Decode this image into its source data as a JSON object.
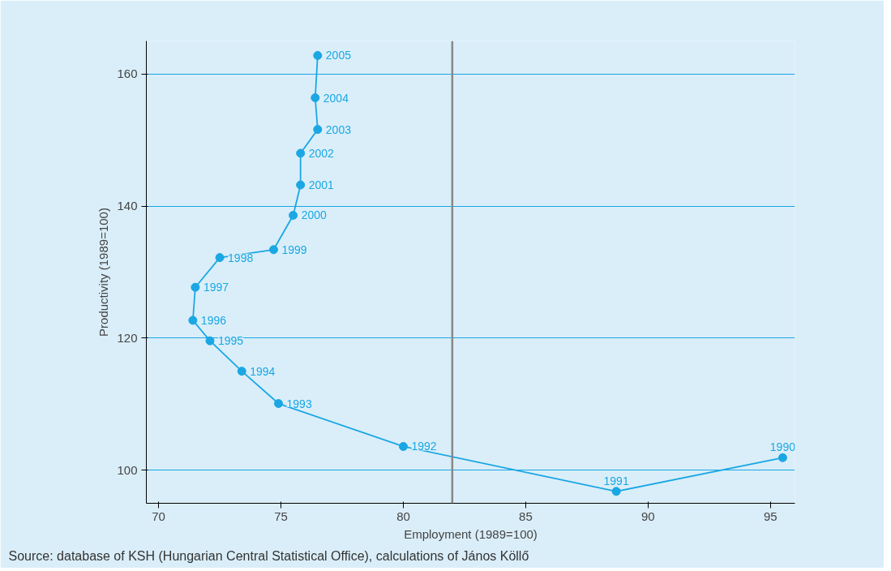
{
  "chart_data": {
    "type": "line",
    "xlabel": "Employment (1989=100)",
    "ylabel": "Productivity (1989=100)",
    "x": [
      95.5,
      88.7,
      80.0,
      74.9,
      73.4,
      72.1,
      71.4,
      71.5,
      72.5,
      74.7,
      75.5,
      75.8,
      75.8,
      76.5,
      76.4,
      76.5
    ],
    "series": [
      {
        "color": "#1aa7e3",
        "values": [
          101.9,
          96.8,
          103.6,
          110.1,
          115.0,
          119.6,
          122.7,
          127.7,
          132.2,
          133.4,
          138.6,
          143.2,
          148.0,
          151.6,
          156.4,
          162.8
        ]
      }
    ],
    "annotations": [
      {
        "text": "1990",
        "x": 95.5,
        "y": 101.9
      },
      {
        "text": "1991",
        "x": 88.7,
        "y": 96.8
      },
      {
        "text": "1992",
        "x": 80.0,
        "y": 103.6
      },
      {
        "text": "1993",
        "x": 74.9,
        "y": 110.1
      },
      {
        "text": "1994",
        "x": 73.4,
        "y": 115.0
      },
      {
        "text": "1995",
        "x": 72.1,
        "y": 119.6
      },
      {
        "text": "1996",
        "x": 71.4,
        "y": 122.7
      },
      {
        "text": "1997",
        "x": 71.5,
        "y": 127.7
      },
      {
        "text": "1998",
        "x": 72.5,
        "y": 132.2
      },
      {
        "text": "1999",
        "x": 74.7,
        "y": 133.4
      },
      {
        "text": "2000",
        "x": 75.5,
        "y": 138.6
      },
      {
        "text": "2001",
        "x": 75.8,
        "y": 143.2
      },
      {
        "text": "2002",
        "x": 75.8,
        "y": 148.0
      },
      {
        "text": "2003",
        "x": 76.5,
        "y": 151.6
      },
      {
        "text": "2004",
        "x": 76.4,
        "y": 156.4
      },
      {
        "text": "2005",
        "x": 76.5,
        "y": 162.8
      },
      "Source: database of KSH (Hungarian Central Statistical Office), calculations of János Köllő"
    ],
    "ref_lines": [
      {
        "axis": "x",
        "value": 82,
        "color": "#888888"
      }
    ],
    "xlim": [
      69.5,
      96
    ],
    "ylim": [
      95,
      165
    ],
    "xticks": [
      70,
      75,
      80,
      85,
      90,
      95
    ],
    "yticks": [
      100,
      120,
      140,
      160
    ],
    "grid": "y",
    "marker": "circle",
    "line_style": "solid"
  }
}
